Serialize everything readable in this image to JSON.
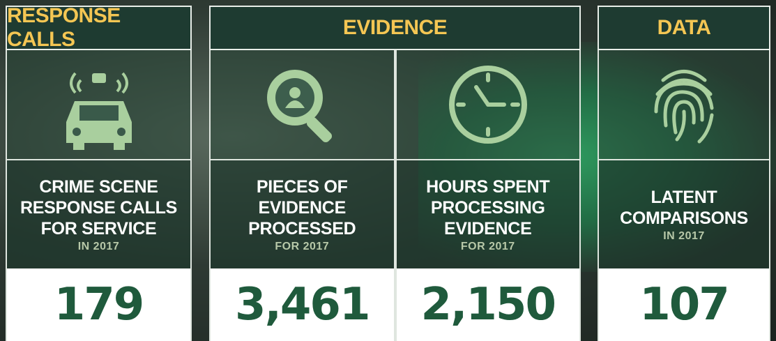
{
  "sections": [
    {
      "title": "RESPONSE CALLS",
      "stats": [
        {
          "label_lines": [
            "CRIME SCENE",
            "RESPONSE CALLS",
            "FOR SERVICE"
          ],
          "period": "IN 2017",
          "value": "179"
        }
      ]
    },
    {
      "title": "EVIDENCE",
      "stats": [
        {
          "label_lines": [
            "PIECES OF",
            "EVIDENCE",
            "PROCESSED"
          ],
          "period": "FOR 2017",
          "value": "3,461"
        },
        {
          "label_lines": [
            "HOURS SPENT",
            "PROCESSING",
            "EVIDENCE"
          ],
          "period": "FOR 2017",
          "value": "2,150"
        }
      ]
    },
    {
      "title": "DATA",
      "stats": [
        {
          "label_lines": [
            "LATENT",
            "COMPARISONS"
          ],
          "period": "IN 2017",
          "value": "107"
        }
      ]
    }
  ]
}
